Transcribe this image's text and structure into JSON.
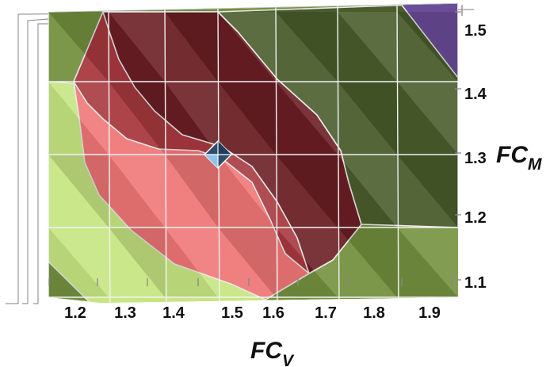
{
  "chart_data": {
    "type": "heatmap",
    "subtype": "3d-surface-contour",
    "x": [
      1.2,
      1.3,
      1.4,
      1.5,
      1.6,
      1.7,
      1.8,
      1.9
    ],
    "y": [
      1.1,
      1.2,
      1.3,
      1.4,
      1.5
    ],
    "x_tick_labels": [
      "1.2",
      "1.3",
      "1.4",
      "1.5",
      "1.6",
      "1.7",
      "1.8",
      "1.9"
    ],
    "y_tick_labels": [
      "1.1",
      "1.2",
      "1.3",
      "1.4",
      "1.5"
    ],
    "xlabel": "FC",
    "xlabel_sub": "V",
    "ylabel": "FC",
    "ylabel_sub": "M",
    "xlim": [
      1.13,
      1.97
    ],
    "ylim": [
      1.07,
      1.53
    ],
    "grid": true,
    "legend": "none",
    "colors": {
      "grid_line": "#f2f2f2",
      "contour_line": "#e8e8e8",
      "marker": "#8fc3ef",
      "marker_edge": "#2f4d6a",
      "frame_line": "#999999",
      "tick_mark": "#888888"
    },
    "bands": [
      {
        "key": "purple",
        "color": "#6b4e9a",
        "level": "highest"
      },
      {
        "key": "dark-green",
        "color": "#4a5d2c",
        "level": "high"
      },
      {
        "key": "dark-red",
        "color": "#6b1f24",
        "level": "upper-mid"
      },
      {
        "key": "red",
        "color": "#a8393f",
        "level": "mid"
      },
      {
        "key": "pink",
        "color": "#f07777",
        "level": "lower-mid"
      },
      {
        "key": "light-green",
        "color": "#c7e682",
        "level": "low"
      },
      {
        "key": "olive",
        "color": "#74913f",
        "level": "lowest"
      }
    ],
    "marker_point": {
      "x": 1.5,
      "y": 1.3,
      "shape": "diamond"
    }
  }
}
